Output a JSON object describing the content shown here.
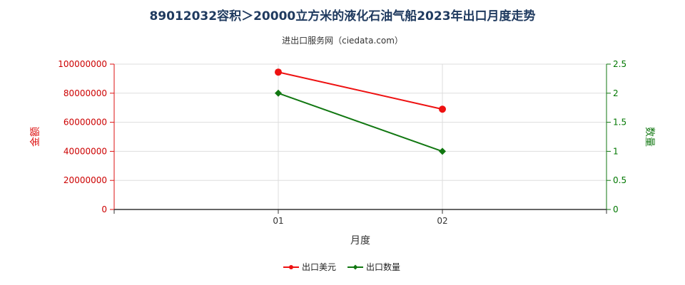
{
  "chart_data": {
    "type": "line",
    "title": "89012032容积＞20000立方米的液化石油气船2023年出口月度走势",
    "subtitle": "进出口服务网（ciedata.com）",
    "xlabel": "月度",
    "ylabel_left": "金额",
    "ylabel_right": "数量",
    "categories": [
      "01",
      "02"
    ],
    "y_left": {
      "ylim": [
        0,
        100000000
      ],
      "ticks": [
        "0",
        "20000000",
        "40000000",
        "60000000",
        "80000000",
        "100000000"
      ],
      "color": "#dd1111"
    },
    "y_right": {
      "ylim": [
        0,
        2.5
      ],
      "ticks": [
        "0",
        "0.5",
        "1",
        "1.5",
        "2",
        "2.5"
      ],
      "color": "#117711"
    },
    "series": [
      {
        "name": "出口美元",
        "axis": "left",
        "color": "#ee1111",
        "marker": "circle",
        "values": [
          94500000,
          69000000
        ]
      },
      {
        "name": "出口数量",
        "axis": "right",
        "color": "#117711",
        "marker": "diamond",
        "values": [
          2,
          1
        ]
      }
    ],
    "grid": true,
    "legend_position": "bottom-center"
  }
}
